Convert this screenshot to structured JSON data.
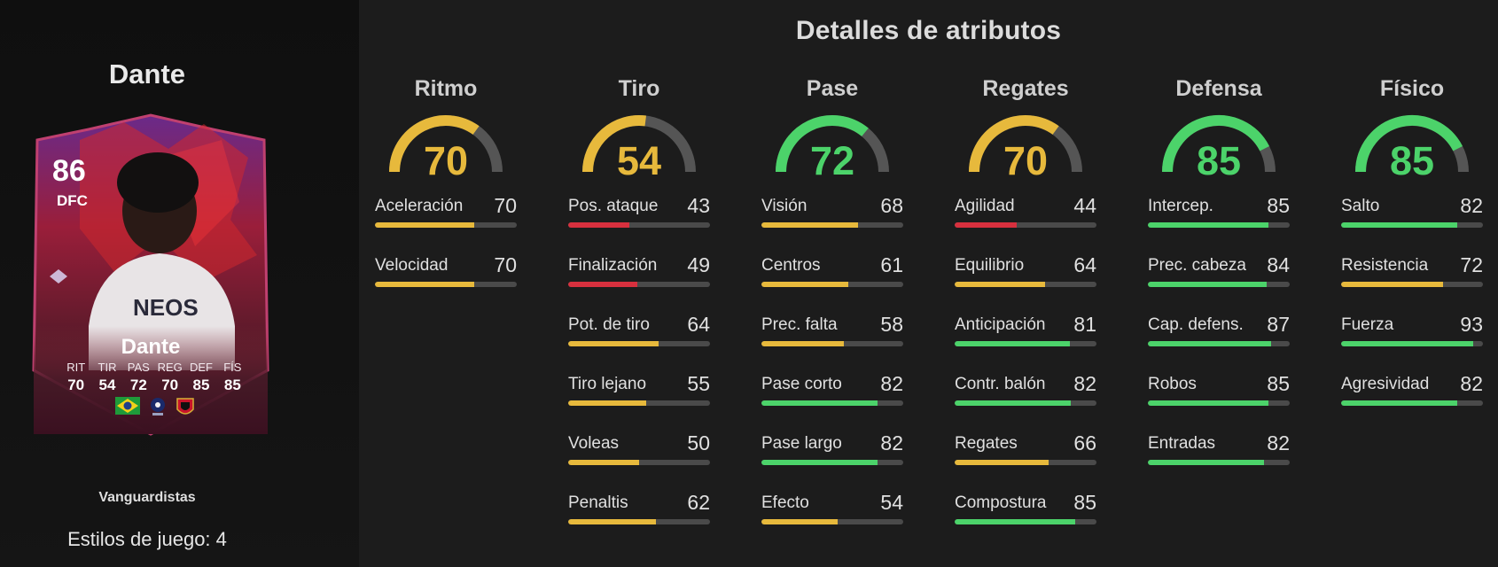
{
  "player": {
    "name": "Dante",
    "rating": "86",
    "position": "DFC",
    "card_name": "Dante",
    "card_stats": [
      {
        "label": "RIT",
        "value": "70"
      },
      {
        "label": "TIR",
        "value": "54"
      },
      {
        "label": "PAS",
        "value": "72"
      },
      {
        "label": "REG",
        "value": "70"
      },
      {
        "label": "DEF",
        "value": "85"
      },
      {
        "label": "FÍS",
        "value": "85"
      }
    ],
    "playstyle_name": "Vanguardistas",
    "playstyles_count": "Estilos de juego: 4"
  },
  "colors": {
    "yellow": "#e7b93c",
    "green": "#4cd36a",
    "red": "#d7303e",
    "track": "#4a4a4a",
    "card_accent": "#c0203a"
  },
  "attributes": {
    "title": "Detalles de atributos",
    "categories": [
      {
        "name": "Ritmo",
        "value": 70,
        "rows": [
          {
            "label": "Aceleración",
            "value": 70
          },
          {
            "label": "Velocidad",
            "value": 70
          }
        ]
      },
      {
        "name": "Tiro",
        "value": 54,
        "rows": [
          {
            "label": "Pos. ataque",
            "value": 43
          },
          {
            "label": "Finalización",
            "value": 49
          },
          {
            "label": "Pot. de tiro",
            "value": 64
          },
          {
            "label": "Tiro lejano",
            "value": 55
          },
          {
            "label": "Voleas",
            "value": 50
          },
          {
            "label": "Penaltis",
            "value": 62
          }
        ]
      },
      {
        "name": "Pase",
        "value": 72,
        "rows": [
          {
            "label": "Visión",
            "value": 68
          },
          {
            "label": "Centros",
            "value": 61
          },
          {
            "label": "Prec. falta",
            "value": 58
          },
          {
            "label": "Pase corto",
            "value": 82
          },
          {
            "label": "Pase largo",
            "value": 82
          },
          {
            "label": "Efecto",
            "value": 54
          }
        ]
      },
      {
        "name": "Regates",
        "value": 70,
        "rows": [
          {
            "label": "Agilidad",
            "value": 44
          },
          {
            "label": "Equilibrio",
            "value": 64
          },
          {
            "label": "Anticipación",
            "value": 81
          },
          {
            "label": "Contr. balón",
            "value": 82
          },
          {
            "label": "Regates",
            "value": 66
          },
          {
            "label": "Compostura",
            "value": 85
          }
        ]
      },
      {
        "name": "Defensa",
        "value": 85,
        "rows": [
          {
            "label": "Intercep.",
            "value": 85
          },
          {
            "label": "Prec. cabeza",
            "value": 84
          },
          {
            "label": "Cap. defens.",
            "value": 87
          },
          {
            "label": "Robos",
            "value": 85
          },
          {
            "label": "Entradas",
            "value": 82
          }
        ]
      },
      {
        "name": "Físico",
        "value": 85,
        "rows": [
          {
            "label": "Salto",
            "value": 82
          },
          {
            "label": "Resistencia",
            "value": 72
          },
          {
            "label": "Fuerza",
            "value": 93
          },
          {
            "label": "Agresividad",
            "value": 82
          }
        ]
      }
    ]
  }
}
